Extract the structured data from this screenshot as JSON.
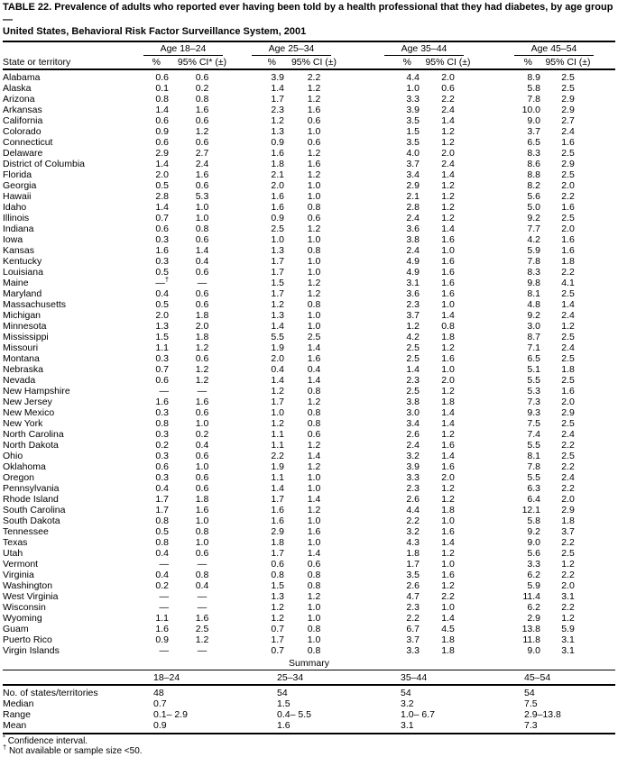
{
  "title": {
    "line1": "TABLE 22. Prevalence of adults who reported ever having been told by a health professional that they had diabetes, by age group —",
    "line2": "United States, Behavioral Risk Factor Surveillance System, 2001"
  },
  "table": {
    "state_header": "State or territory",
    "groups": [
      {
        "label": "Age 18–24",
        "pct_header": "%",
        "ci_header": "95% CI* (±)"
      },
      {
        "label": "Age 25–34",
        "pct_header": "%",
        "ci_header": "95% CI (±)"
      },
      {
        "label": "Age 35–44",
        "pct_header": "%",
        "ci_header": "95% CI (±)"
      },
      {
        "label": "Age 45–54",
        "pct_header": "%",
        "ci_header": "95% CI (±)"
      }
    ],
    "rows": [
      [
        "Alabama",
        "0.6",
        "0.6",
        "3.9",
        "2.2",
        "4.4",
        "2.0",
        "8.9",
        "2.5"
      ],
      [
        "Alaska",
        "0.1",
        "0.2",
        "1.4",
        "1.2",
        "1.0",
        "0.6",
        "5.8",
        "2.5"
      ],
      [
        "Arizona",
        "0.8",
        "0.8",
        "1.7",
        "1.2",
        "3.3",
        "2.2",
        "7.8",
        "2.9"
      ],
      [
        "Arkansas",
        "1.4",
        "1.6",
        "2.3",
        "1.6",
        "3.9",
        "2.4",
        "10.0",
        "2.9"
      ],
      [
        "California",
        "0.6",
        "0.6",
        "1.2",
        "0.6",
        "3.5",
        "1.4",
        "9.0",
        "2.7"
      ],
      [
        "Colorado",
        "0.9",
        "1.2",
        "1.3",
        "1.0",
        "1.5",
        "1.2",
        "3.7",
        "2.4"
      ],
      [
        "Connecticut",
        "0.6",
        "0.6",
        "0.9",
        "0.6",
        "3.5",
        "1.2",
        "6.5",
        "1.6"
      ],
      [
        "Delaware",
        "2.9",
        "2.7",
        "1.6",
        "1.2",
        "4.0",
        "2.0",
        "8.3",
        "2.5"
      ],
      [
        "District of Columbia",
        "1.4",
        "2.4",
        "1.8",
        "1.6",
        "3.7",
        "2.4",
        "8.6",
        "2.9"
      ],
      [
        "Florida",
        "2.0",
        "1.6",
        "2.1",
        "1.2",
        "3.4",
        "1.4",
        "8.8",
        "2.5"
      ],
      [
        "Georgia",
        "0.5",
        "0.6",
        "2.0",
        "1.0",
        "2.9",
        "1.2",
        "8.2",
        "2.0"
      ],
      [
        "Hawaii",
        "2.8",
        "5.3",
        "1.6",
        "1.0",
        "2.1",
        "1.2",
        "5.6",
        "2.2"
      ],
      [
        "Idaho",
        "1.4",
        "1.0",
        "1.6",
        "0.8",
        "2.8",
        "1.2",
        "5.0",
        "1.6"
      ],
      [
        "Illinois",
        "0.7",
        "1.0",
        "0.9",
        "0.6",
        "2.4",
        "1.2",
        "9.2",
        "2.5"
      ],
      [
        "Indiana",
        "0.6",
        "0.8",
        "2.5",
        "1.2",
        "3.6",
        "1.4",
        "7.7",
        "2.0"
      ],
      [
        "Iowa",
        "0.3",
        "0.6",
        "1.0",
        "1.0",
        "3.8",
        "1.6",
        "4.2",
        "1.6"
      ],
      [
        "Kansas",
        "1.6",
        "1.4",
        "1.3",
        "0.8",
        "2.4",
        "1.0",
        "5.9",
        "1.6"
      ],
      [
        "Kentucky",
        "0.3",
        "0.4",
        "1.7",
        "1.0",
        "4.9",
        "1.6",
        "7.8",
        "1.8"
      ],
      [
        "Louisiana",
        "0.5",
        "0.6",
        "1.7",
        "1.0",
        "4.9",
        "1.6",
        "8.3",
        "2.2"
      ],
      [
        "Maine",
        "—†",
        "—",
        "1.5",
        "1.2",
        "3.1",
        "1.6",
        "9.8",
        "4.1"
      ],
      [
        "Maryland",
        "0.4",
        "0.6",
        "1.7",
        "1.2",
        "3.6",
        "1.6",
        "8.1",
        "2.5"
      ],
      [
        "Massachusetts",
        "0.5",
        "0.6",
        "1.2",
        "0.8",
        "2.3",
        "1.0",
        "4.8",
        "1.4"
      ],
      [
        "Michigan",
        "2.0",
        "1.8",
        "1.3",
        "1.0",
        "3.7",
        "1.4",
        "9.2",
        "2.4"
      ],
      [
        "Minnesota",
        "1.3",
        "2.0",
        "1.4",
        "1.0",
        "1.2",
        "0.8",
        "3.0",
        "1.2"
      ],
      [
        "Mississippi",
        "1.5",
        "1.8",
        "5.5",
        "2.5",
        "4.2",
        "1.8",
        "8.7",
        "2.5"
      ],
      [
        "Missouri",
        "1.1",
        "1.2",
        "1.9",
        "1.4",
        "2.5",
        "1.2",
        "7.1",
        "2.4"
      ],
      [
        "Montana",
        "0.3",
        "0.6",
        "2.0",
        "1.6",
        "2.5",
        "1.6",
        "6.5",
        "2.5"
      ],
      [
        "Nebraska",
        "0.7",
        "1.2",
        "0.4",
        "0.4",
        "1.4",
        "1.0",
        "5.1",
        "1.8"
      ],
      [
        "Nevada",
        "0.6",
        "1.2",
        "1.4",
        "1.4",
        "2.3",
        "2.0",
        "5.5",
        "2.5"
      ],
      [
        "New Hampshire",
        "—",
        "—",
        "1.2",
        "0.8",
        "2.5",
        "1.2",
        "5.3",
        "1.6"
      ],
      [
        "New Jersey",
        "1.6",
        "1.6",
        "1.7",
        "1.2",
        "3.8",
        "1.8",
        "7.3",
        "2.0"
      ],
      [
        "New Mexico",
        "0.3",
        "0.6",
        "1.0",
        "0.8",
        "3.0",
        "1.4",
        "9.3",
        "2.9"
      ],
      [
        "New York",
        "0.8",
        "1.0",
        "1.2",
        "0.8",
        "3.4",
        "1.4",
        "7.5",
        "2.5"
      ],
      [
        "North Carolina",
        "0.3",
        "0.2",
        "1.1",
        "0.6",
        "2.6",
        "1.2",
        "7.4",
        "2.4"
      ],
      [
        "North Dakota",
        "0.2",
        "0.4",
        "1.1",
        "1.2",
        "2.4",
        "1.6",
        "5.5",
        "2.2"
      ],
      [
        "Ohio",
        "0.3",
        "0.6",
        "2.2",
        "1.4",
        "3.2",
        "1.4",
        "8.1",
        "2.5"
      ],
      [
        "Oklahoma",
        "0.6",
        "1.0",
        "1.9",
        "1.2",
        "3.9",
        "1.6",
        "7.8",
        "2.2"
      ],
      [
        "Oregon",
        "0.3",
        "0.6",
        "1.1",
        "1.0",
        "3.3",
        "2.0",
        "5.5",
        "2.4"
      ],
      [
        "Pennsylvania",
        "0.4",
        "0.6",
        "1.4",
        "1.0",
        "2.3",
        "1.2",
        "6.3",
        "2.2"
      ],
      [
        "Rhode Island",
        "1.7",
        "1.8",
        "1.7",
        "1.4",
        "2.6",
        "1.2",
        "6.4",
        "2.0"
      ],
      [
        "South Carolina",
        "1.7",
        "1.6",
        "1.6",
        "1.2",
        "4.4",
        "1.8",
        "12.1",
        "2.9"
      ],
      [
        "South Dakota",
        "0.8",
        "1.0",
        "1.6",
        "1.0",
        "2.2",
        "1.0",
        "5.8",
        "1.8"
      ],
      [
        "Tennessee",
        "0.5",
        "0.8",
        "2.9",
        "1.6",
        "3.2",
        "1.6",
        "9.2",
        "3.7"
      ],
      [
        "Texas",
        "0.8",
        "1.0",
        "1.8",
        "1.0",
        "4.3",
        "1.4",
        "9.0",
        "2.2"
      ],
      [
        "Utah",
        "0.4",
        "0.6",
        "1.7",
        "1.4",
        "1.8",
        "1.2",
        "5.6",
        "2.5"
      ],
      [
        "Vermont",
        "—",
        "—",
        "0.6",
        "0.6",
        "1.7",
        "1.0",
        "3.3",
        "1.2"
      ],
      [
        "Virginia",
        "0.4",
        "0.8",
        "0.8",
        "0.8",
        "3.5",
        "1.6",
        "6.2",
        "2.2"
      ],
      [
        "Washington",
        "0.2",
        "0.4",
        "1.5",
        "0.8",
        "2.6",
        "1.2",
        "5.9",
        "2.0"
      ],
      [
        "West Virginia",
        "—",
        "—",
        "1.3",
        "1.2",
        "4.7",
        "2.2",
        "11.4",
        "3.1"
      ],
      [
        "Wisconsin",
        "—",
        "—",
        "1.2",
        "1.0",
        "2.3",
        "1.0",
        "6.2",
        "2.2"
      ],
      [
        "Wyoming",
        "1.1",
        "1.6",
        "1.2",
        "1.0",
        "2.2",
        "1.4",
        "2.9",
        "1.2"
      ],
      [
        "Guam",
        "1.6",
        "2.5",
        "0.7",
        "0.8",
        "6.7",
        "4.5",
        "13.8",
        "5.9"
      ],
      [
        "Puerto Rico",
        "0.9",
        "1.2",
        "1.7",
        "1.0",
        "3.7",
        "1.8",
        "11.8",
        "3.1"
      ],
      [
        "Virgin Islands",
        "—",
        "—",
        "0.7",
        "0.8",
        "3.3",
        "1.8",
        "9.0",
        "3.1"
      ]
    ]
  },
  "summary": {
    "title": "Summary",
    "col_headers": [
      "18–24",
      "25–34",
      "35–44",
      "45–54"
    ],
    "rows": [
      [
        "No. of states/territories",
        "48",
        "54",
        "54",
        "54"
      ],
      [
        "Median",
        "0.7",
        "1.5",
        "3.2",
        "7.5"
      ],
      [
        "Range",
        "0.1– 2.9",
        "0.4– 5.5",
        "1.0– 6.7",
        "2.9–13.8"
      ],
      [
        "Mean",
        "0.9",
        "1.6",
        "3.1",
        "7.3"
      ]
    ]
  },
  "footnotes": [
    {
      "marker": "*",
      "text": "Confidence interval."
    },
    {
      "marker": "†",
      "text": "Not available or sample size <50."
    }
  ],
  "colors": {
    "text": "#000000",
    "background": "#ffffff",
    "rule": "#000000"
  }
}
